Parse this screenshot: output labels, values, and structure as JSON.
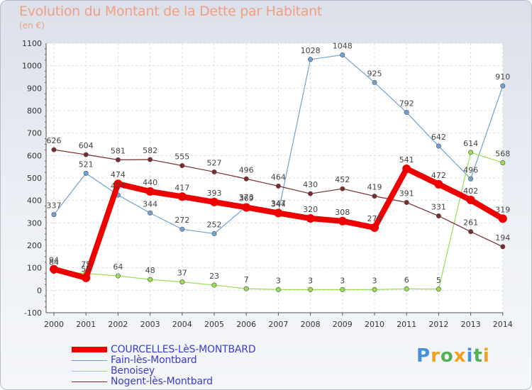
{
  "chart_data": {
    "type": "line",
    "title": "Evolution du Montant de la Dette par Habitant",
    "subtitle": "(en €)",
    "ylim": [
      -100,
      1100
    ],
    "yticks": [
      -100,
      0,
      100,
      200,
      300,
      400,
      500,
      600,
      700,
      800,
      900,
      1000,
      1100
    ],
    "x": [
      "2000",
      "2001",
      "2002",
      "2003",
      "2004",
      "2005",
      "2006",
      "2007",
      "2008",
      "2009",
      "2010",
      "2011",
      "2012",
      "2013",
      "2014"
    ],
    "grid": true,
    "legend_position": "bottom-left",
    "series": [
      {
        "name": "COURCELLES-LèS-MONTBARD",
        "color": "#ee0000",
        "values": [
          94,
          55,
          474,
          440,
          417,
          393,
          369,
          344,
          320,
          308,
          279,
          541,
          472,
          402,
          319
        ]
      },
      {
        "name": "Fain-lès-Montbard",
        "color": "#6fa2d2",
        "values": [
          337,
          521,
          424,
          344,
          272,
          252,
          373,
          347,
          1028,
          1048,
          925,
          792,
          642,
          496,
          910
        ]
      },
      {
        "name": "Benoisey",
        "color": "#99dd55",
        "values": [
          84,
          75,
          64,
          48,
          37,
          23,
          7,
          3,
          3,
          3,
          3,
          6,
          5,
          614,
          568
        ]
      },
      {
        "name": "Nogent-lès-Montbard",
        "color": "#7a2b2b",
        "values": [
          626,
          604,
          581,
          582,
          555,
          527,
          496,
          464,
          430,
          452,
          419,
          391,
          331,
          261,
          194
        ]
      }
    ]
  },
  "logo": {
    "letters": [
      "P",
      "r",
      "o",
      "x",
      "i",
      "t",
      "i"
    ],
    "colors": [
      "#4a90d9",
      "#f0a020",
      "#55b055",
      "#f0a020",
      "#4a90d9",
      "#55b055",
      "#f0a020"
    ]
  }
}
